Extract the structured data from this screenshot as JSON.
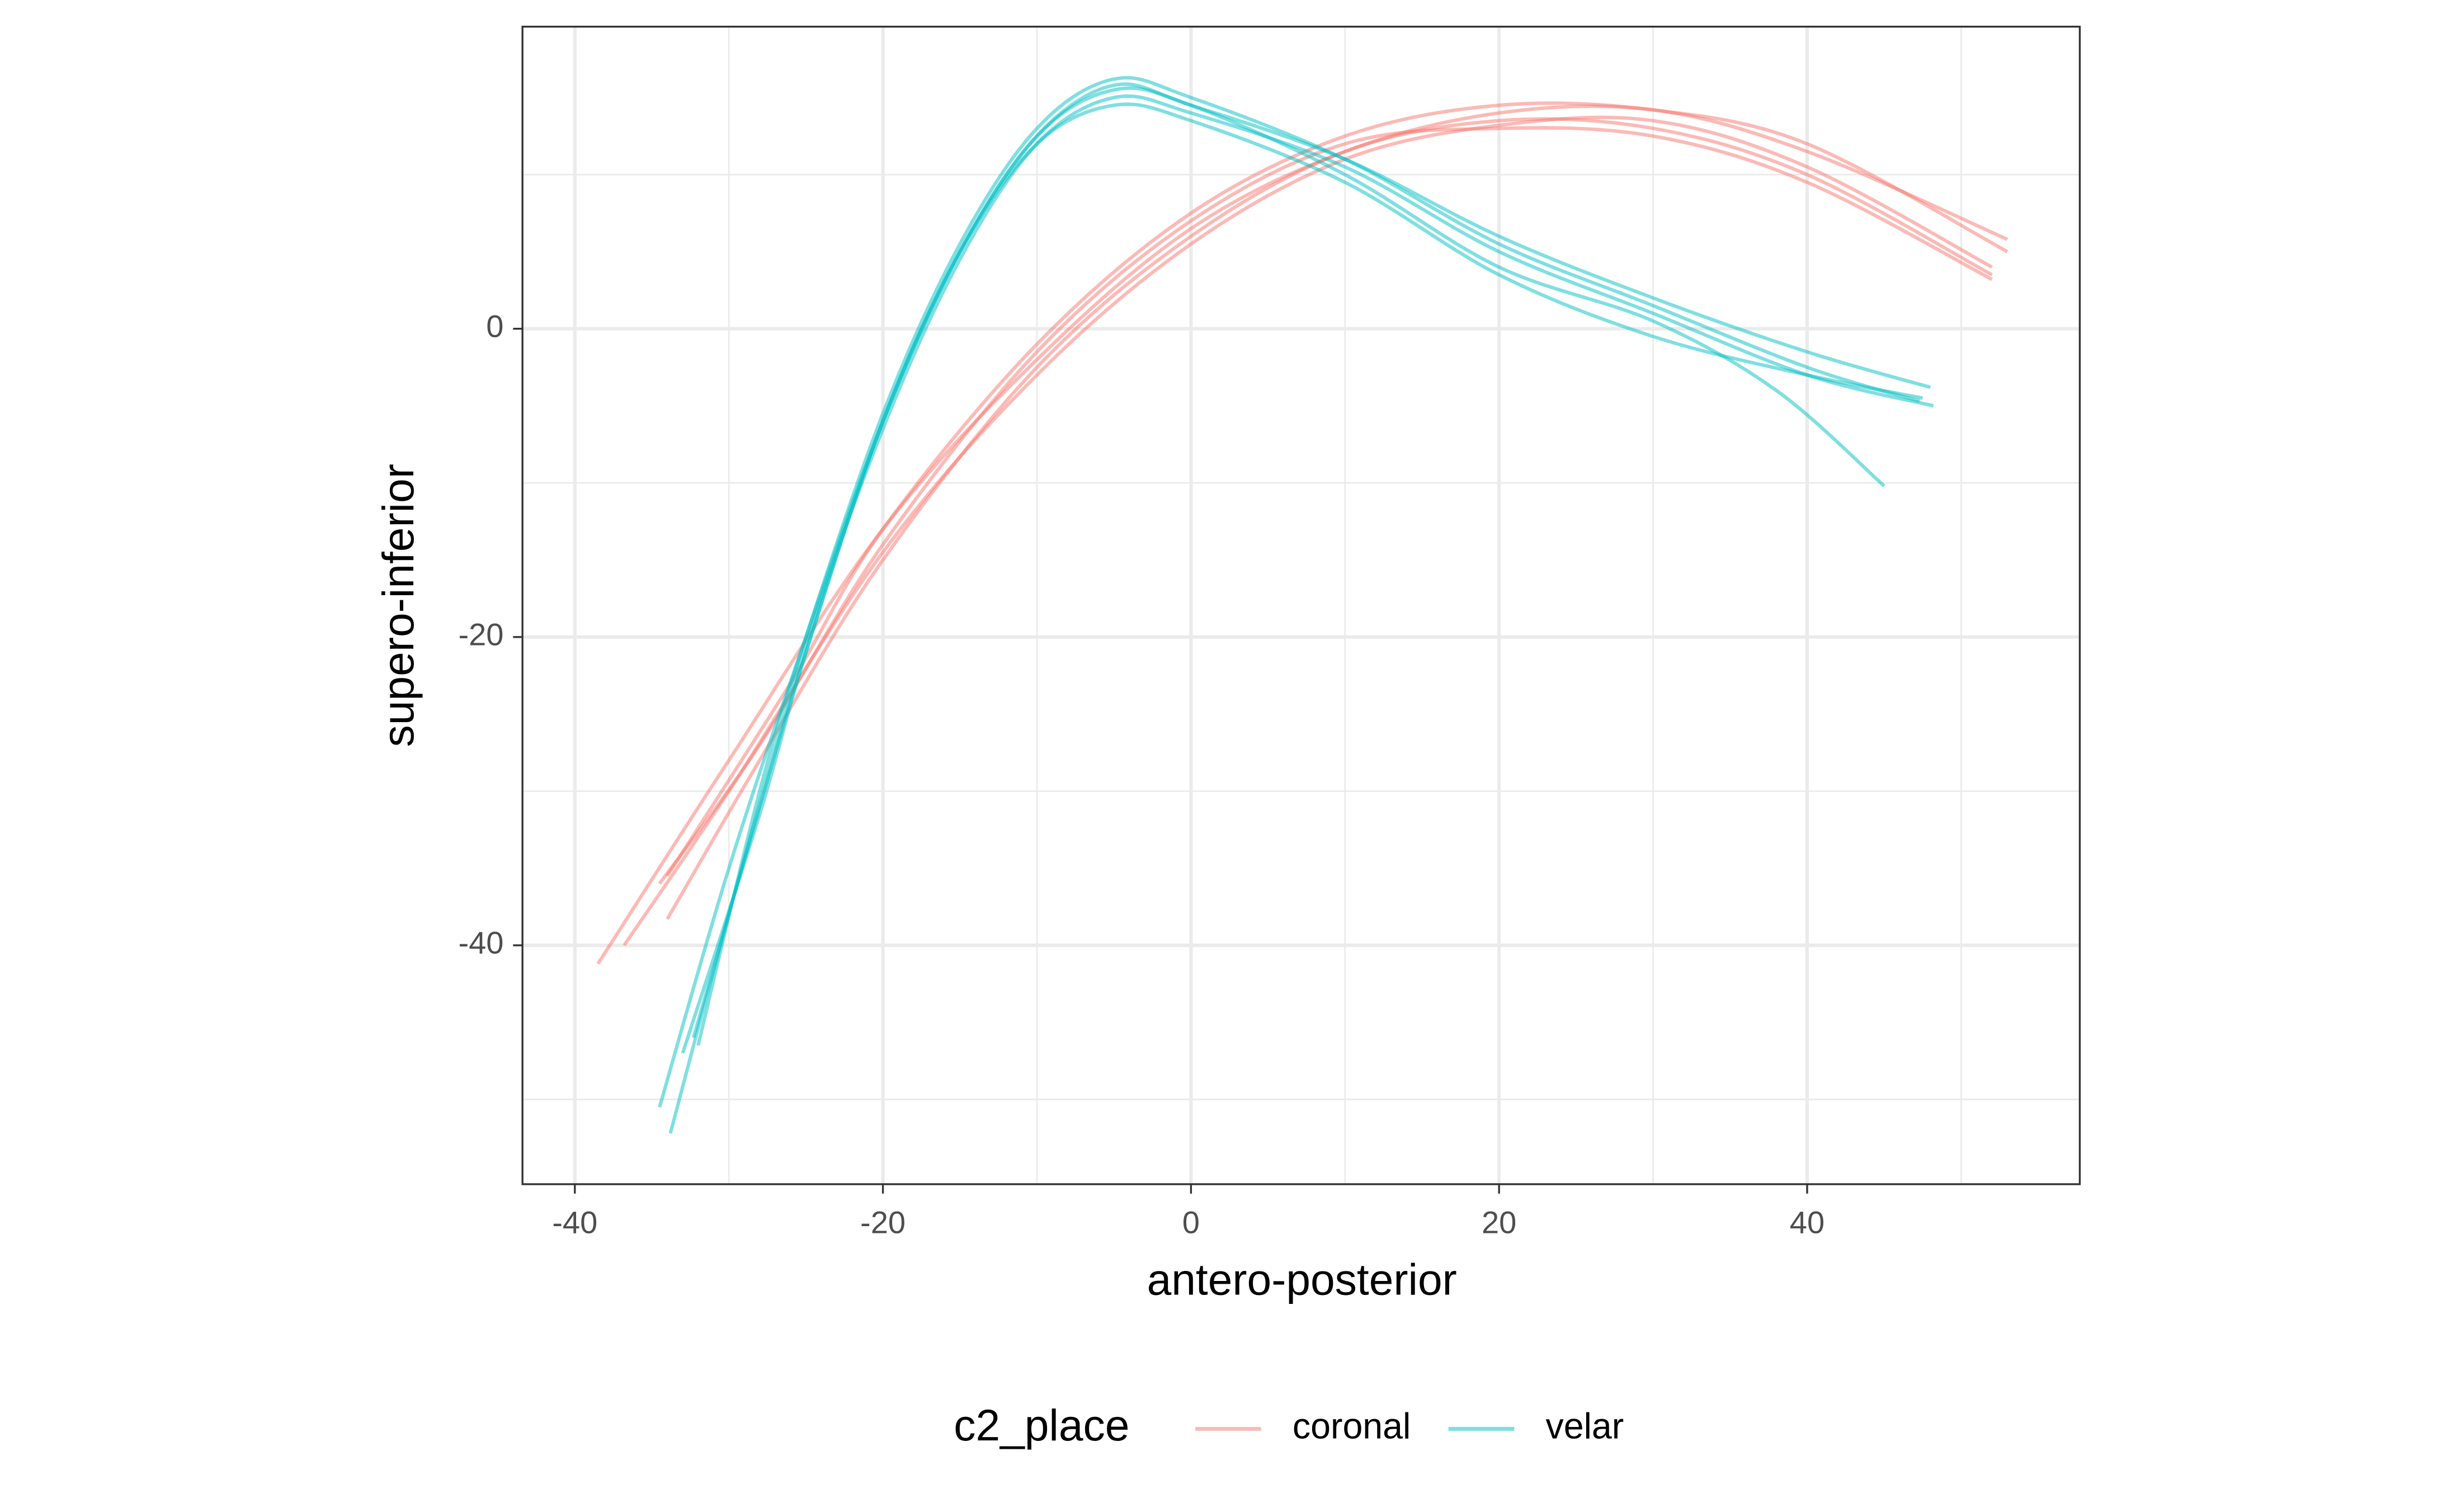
{
  "chart_data": {
    "type": "line",
    "x_label": "antero-posterior",
    "y_label": "supero-inferior",
    "legend_title": "c2_place",
    "legend_position": "bottom",
    "xlim": [
      -43.4,
      57.7
    ],
    "ylim": [
      -55.5,
      19.6
    ],
    "xticks": [
      -40,
      -20,
      0,
      20,
      40
    ],
    "yticks": [
      -40,
      -20,
      0
    ],
    "x_minor_grid": [
      -30,
      -10,
      10,
      30,
      50
    ],
    "y_minor_grid": [
      -50,
      -30,
      -10,
      10
    ],
    "grid": true,
    "line_opacity": 0.5,
    "series": [
      {
        "name": "coronal",
        "color": "#F8766D",
        "lines": [
          {
            "x": [
              -38.5,
              -30,
              -20,
              -10,
              0,
              10,
              20,
              30,
              40,
              53
            ],
            "y": [
              -41.2,
              -28,
              -13,
              -2,
              6.5,
              11.5,
              14,
              14.2,
              11.5,
              5.8
            ]
          },
          {
            "x": [
              -36.8,
              -30,
              -20,
              -10,
              0,
              10,
              20,
              30,
              40,
              52
            ],
            "y": [
              -40,
              -30,
              -14.5,
              -3,
              5.5,
              11,
              13.2,
              13.5,
              10.5,
              4
            ]
          },
          {
            "x": [
              -34,
              -28,
              -20,
              -10,
              0,
              10,
              20,
              30,
              40,
              52
            ],
            "y": [
              -38.3,
              -28,
              -15,
              -2.5,
              6,
              11.5,
              13.5,
              13,
              10,
              3.5
            ]
          },
          {
            "x": [
              -34.5,
              -28,
              -20,
              -10,
              0,
              10,
              20,
              30,
              40,
              52
            ],
            "y": [
              -36,
              -27,
              -14,
              -1.5,
              7,
              12,
              13,
              12.5,
              9.5,
              3.2
            ]
          },
          {
            "x": [
              -34,
              -26,
              -20,
              -10,
              0,
              10,
              20,
              30,
              40,
              53
            ],
            "y": [
              -35.5,
              -23,
              -13,
              -1,
              7.5,
              12.5,
              14.5,
              14.2,
              12,
              5
            ]
          }
        ]
      },
      {
        "name": "velar",
        "color": "#00BFC4",
        "lines": [
          {
            "x": [
              -34.5,
              -30,
              -25,
              -20,
              -15,
              -10,
              -5,
              0,
              10,
              20,
              30,
              40,
              48
            ],
            "y": [
              -50.5,
              -35,
              -20,
              -6,
              5,
              12.5,
              15.8,
              14.5,
              11,
              6,
              2,
              -1.5,
              -3.8
            ]
          },
          {
            "x": [
              -33.8,
              -30,
              -25,
              -20,
              -15,
              -10,
              -5,
              0,
              10,
              20,
              30,
              40,
              48.2
            ],
            "y": [
              -52.2,
              -38,
              -20.5,
              -6.5,
              4.5,
              12,
              15,
              14,
              10.5,
              5,
              1,
              -3,
              -5
            ]
          },
          {
            "x": [
              -32.3,
              -28,
              -25,
              -20,
              -15,
              -10,
              -5,
              0,
              10,
              20,
              30,
              38,
              45
            ],
            "y": [
              -46,
              -31,
              -21,
              -6,
              5,
              12.5,
              15.5,
              14.5,
              10,
              4,
              0.5,
              -4,
              -10.2
            ]
          },
          {
            "x": [
              -32,
              -28,
              -25,
              -20,
              -15,
              -10,
              -5,
              0,
              10,
              20,
              30,
              40,
              47.3
            ],
            "y": [
              -46.5,
              -30,
              -20,
              -5.5,
              5.5,
              13,
              16.2,
              15,
              11,
              5.5,
              1.5,
              -2.5,
              -4.7
            ]
          },
          {
            "x": [
              -33,
              -28,
              -25,
              -20,
              -15,
              -10,
              -5,
              0,
              10,
              20,
              30,
              40,
              47.5
            ],
            "y": [
              -47,
              -31.5,
              -21,
              -6,
              5,
              12,
              14.5,
              13.5,
              9.5,
              3.5,
              -0.5,
              -3,
              -4.5
            ]
          }
        ]
      }
    ]
  }
}
